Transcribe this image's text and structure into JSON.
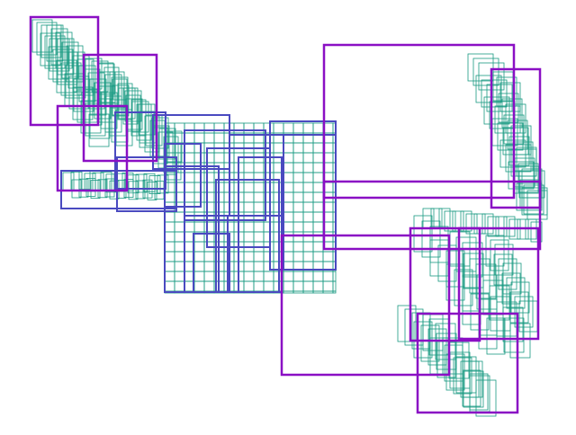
{
  "diagram": {
    "type": "rectangle-packing",
    "colors": {
      "background": "#ffffff",
      "outer": "#8a0fc4",
      "mid": "#4a4ac0",
      "cell": "#1a9a82"
    }
  }
}
